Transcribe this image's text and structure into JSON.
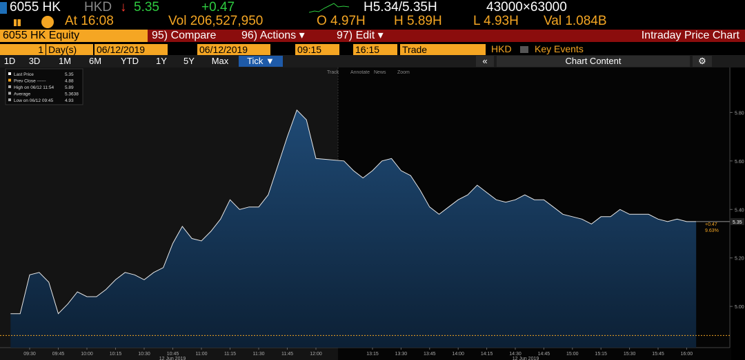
{
  "header": {
    "row1": {
      "ticker": "6055 HK",
      "currency": "HKD",
      "arrow": "↓",
      "price": "5.35",
      "change": "+0.47",
      "bid_ask": "H5.34/5.35H",
      "size": "43000×63000"
    },
    "row2": {
      "time": "At 16:08",
      "volume": "Vol 206,527,950",
      "open": "O 4.97H",
      "high": "H 5.89H",
      "low": "L 4.93H",
      "value": "Val 1.084B"
    },
    "row3": {
      "security": "6055 HK Equity",
      "compare": "95) Compare",
      "actions": "96) Actions ▾",
      "edit": "97) Edit ▾",
      "function": "Intraday Price Chart"
    },
    "row4": {
      "days_n": "1",
      "days": "Day(s)",
      "start_date": "06/12/2019",
      "end_date": "06/12/2019",
      "start_time": "09:15",
      "end_time": "16:15",
      "mode": "Trade",
      "currency": "HKD",
      "key_events": "Key Events"
    },
    "tabs": [
      "1D",
      "3D",
      "1M",
      "6M",
      "YTD",
      "1Y",
      "5Y",
      "Max",
      "Tick ▼"
    ],
    "chart_content": "Chart Content",
    "toolbar": [
      "Track",
      "Annotate",
      "News",
      "Zoom"
    ]
  },
  "chart_data": {
    "type": "area",
    "x": [
      "09:20",
      "09:25",
      "09:30",
      "09:35",
      "09:40",
      "09:45",
      "09:50",
      "09:55",
      "10:00",
      "10:05",
      "10:10",
      "10:15",
      "10:20",
      "10:25",
      "10:30",
      "10:35",
      "10:40",
      "10:45",
      "10:50",
      "10:55",
      "11:00",
      "11:05",
      "11:10",
      "11:15",
      "11:20",
      "11:25",
      "11:30",
      "11:35",
      "11:40",
      "11:45",
      "11:50",
      "11:55",
      "12:00",
      "13:00",
      "13:05",
      "13:10",
      "13:15",
      "13:20",
      "13:25",
      "13:30",
      "13:35",
      "13:40",
      "13:45",
      "13:50",
      "13:55",
      "14:00",
      "14:05",
      "14:10",
      "14:15",
      "14:20",
      "14:25",
      "14:30",
      "14:35",
      "14:40",
      "14:45",
      "14:50",
      "14:55",
      "15:00",
      "15:05",
      "15:10",
      "15:15",
      "15:20",
      "15:25",
      "15:30",
      "15:35",
      "15:40",
      "15:45",
      "15:50",
      "15:55",
      "16:00",
      "16:05"
    ],
    "series": [
      {
        "name": "Last Price",
        "color": "#e8e8e8",
        "values": [
          4.97,
          4.97,
          5.13,
          5.14,
          5.1,
          4.97,
          5.01,
          5.06,
          5.04,
          5.04,
          5.07,
          5.11,
          5.14,
          5.13,
          5.11,
          5.14,
          5.16,
          5.26,
          5.33,
          5.28,
          5.27,
          5.31,
          5.36,
          5.44,
          5.4,
          5.41,
          5.41,
          5.46,
          5.58,
          5.7,
          5.81,
          5.77,
          5.61,
          5.6,
          5.56,
          5.53,
          5.56,
          5.6,
          5.61,
          5.56,
          5.54,
          5.48,
          5.41,
          5.38,
          5.41,
          5.44,
          5.46,
          5.5,
          5.47,
          5.44,
          5.43,
          5.44,
          5.46,
          5.44,
          5.44,
          5.41,
          5.38,
          5.37,
          5.36,
          5.34,
          5.37,
          5.37,
          5.4,
          5.38,
          5.38,
          5.38,
          5.36,
          5.35,
          5.36,
          5.35,
          5.35
        ]
      }
    ],
    "ylim": [
      4.83,
      5.98
    ],
    "yticks": [
      {
        "value": 5,
        "label": "5.00"
      },
      {
        "value": 5.2,
        "label": "5.20"
      },
      {
        "value": 5.4,
        "label": "5.40"
      },
      {
        "value": 5.6,
        "label": "5.60"
      },
      {
        "value": 5.8,
        "label": "5.80"
      }
    ],
    "xticks": [
      "09:30",
      "09:45",
      "10:00",
      "10:15",
      "10:30",
      "10:45",
      "11:00",
      "11:15",
      "11:30",
      "11:45",
      "12:00",
      "13:15",
      "13:30",
      "13:45",
      "14:00",
      "14:15",
      "14:30",
      "14:45",
      "15:00",
      "15:15",
      "15:30",
      "15:45",
      "16:00"
    ],
    "date_labels": [
      "12 Jun 2019",
      "12 Jun 2019"
    ],
    "legend": [
      {
        "label": "Last Price",
        "value": 5.35
      },
      {
        "label": "Prev Close ------",
        "value": 4.88
      },
      {
        "label": "High on 06/12 11:54",
        "value": 5.89
      },
      {
        "label": "Average",
        "value": 5.3638
      },
      {
        "label": "Low on 06/12 09:45",
        "value": 4.93
      }
    ],
    "annotations": [
      "+0.47",
      "9.63%"
    ]
  }
}
